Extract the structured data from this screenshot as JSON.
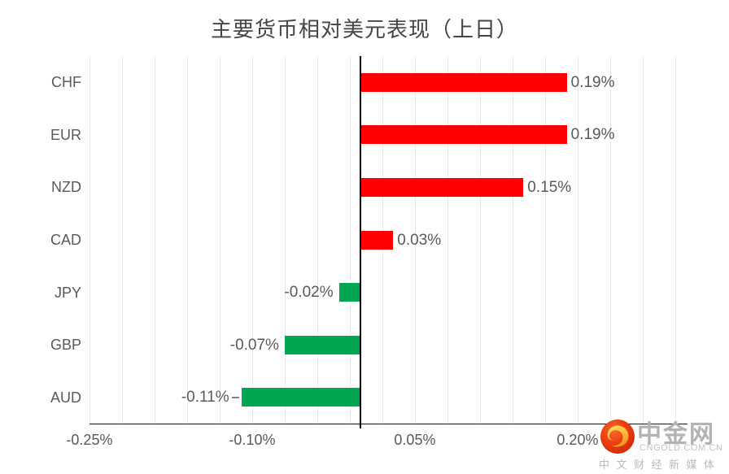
{
  "chart_data": {
    "type": "bar",
    "orientation": "horizontal",
    "title": "主要货币相对美元表现（上日）",
    "categories": [
      "CHF",
      "EUR",
      "NZD",
      "CAD",
      "JPY",
      "GBP",
      "AUD"
    ],
    "values": [
      0.19,
      0.19,
      0.15,
      0.03,
      -0.02,
      -0.07,
      -0.11
    ],
    "value_labels": [
      "0.19%",
      "0.19%",
      "0.15%",
      "0.03%",
      "-0.02%",
      "-0.07%",
      "-0.11%"
    ],
    "unit": "percent",
    "xlabel": "",
    "ylabel": "",
    "x_ticks": [
      {
        "label": "-0.25%",
        "value": -0.25
      },
      {
        "label": "-0.10%",
        "value": -0.1
      },
      {
        "label": "0.05%",
        "value": 0.05
      },
      {
        "label": "0.20%",
        "value": 0.2
      }
    ],
    "xlim": [
      -0.25,
      0.3
    ],
    "grid": true,
    "grid_step": 0.03,
    "legend": null,
    "label_leader_category": "AUD",
    "colors": {
      "positive": "#fe0000",
      "negative": "#00a651",
      "axis": "#000000",
      "gridline": "#ebebeb",
      "label": "#595959",
      "title": "#454545"
    }
  },
  "watermark": {
    "brand": "中金网",
    "site": "CNGOLD.COM.CN",
    "tagline": "中文财经新媒体",
    "icon": "cngold-swirl-icon",
    "colors": {
      "circle_outer": "#d72f07",
      "circle_inner": "#f4541d",
      "swirl_light": "#ffd24d",
      "swirl_dark": "#f5a623",
      "text": "#b3b3b3"
    }
  }
}
